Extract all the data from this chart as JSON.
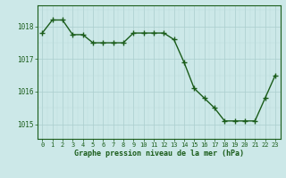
{
  "x": [
    0,
    1,
    2,
    3,
    4,
    5,
    6,
    7,
    8,
    9,
    10,
    11,
    12,
    13,
    14,
    15,
    16,
    17,
    18,
    19,
    20,
    21,
    22,
    23
  ],
  "y": [
    1017.8,
    1018.2,
    1018.2,
    1017.75,
    1017.75,
    1017.5,
    1017.5,
    1017.5,
    1017.5,
    1017.8,
    1017.8,
    1017.8,
    1017.8,
    1017.6,
    1016.9,
    1016.1,
    1015.8,
    1015.5,
    1015.1,
    1015.1,
    1015.1,
    1015.1,
    1015.8,
    1016.5
  ],
  "line_color": "#1a5c1a",
  "marker": "+",
  "marker_color": "#1a5c1a",
  "bg_color": "#cce8e8",
  "grid_major_color": "#aacece",
  "grid_minor_color": "#bcdada",
  "xlabel": "Graphe pression niveau de la mer (hPa)",
  "xlabel_color": "#1a5c1a",
  "tick_color": "#1a5c1a",
  "yticks": [
    1015,
    1016,
    1017,
    1018
  ],
  "ylim": [
    1014.55,
    1018.65
  ],
  "xlim": [
    -0.5,
    23.5
  ],
  "xtick_labels": [
    "0",
    "1",
    "2",
    "3",
    "4",
    "5",
    "6",
    "7",
    "8",
    "9",
    "10",
    "11",
    "12",
    "13",
    "14",
    "15",
    "16",
    "17",
    "18",
    "19",
    "20",
    "21",
    "22",
    "23"
  ],
  "markersize": 4,
  "linewidth": 1.0,
  "axis_linewidth": 0.8
}
